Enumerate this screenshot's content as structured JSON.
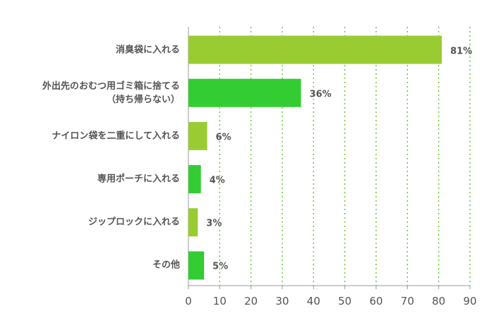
{
  "chart_data": {
    "type": "bar",
    "orientation": "horizontal",
    "categories": [
      "消臭袋に入れる",
      "外出先のおむつ用ゴミ箱に捨てる\n（持ち帰らない）",
      "ナイロン袋を二重にして入れる",
      "専用ポーチに入れる",
      "ジップロックに入れる",
      "その他"
    ],
    "values": [
      81,
      36,
      6,
      4,
      3,
      5
    ],
    "value_labels": [
      "81%",
      "36%",
      "6%",
      "4%",
      "3%",
      "5%"
    ],
    "colors": [
      "#99cc33",
      "#33cc33",
      "#99cc33",
      "#33cc33",
      "#99cc33",
      "#33cc33"
    ],
    "xlim": [
      0,
      90
    ],
    "xticks": [
      0,
      10,
      20,
      30,
      40,
      50,
      60,
      70,
      80,
      90
    ],
    "grid": true
  }
}
